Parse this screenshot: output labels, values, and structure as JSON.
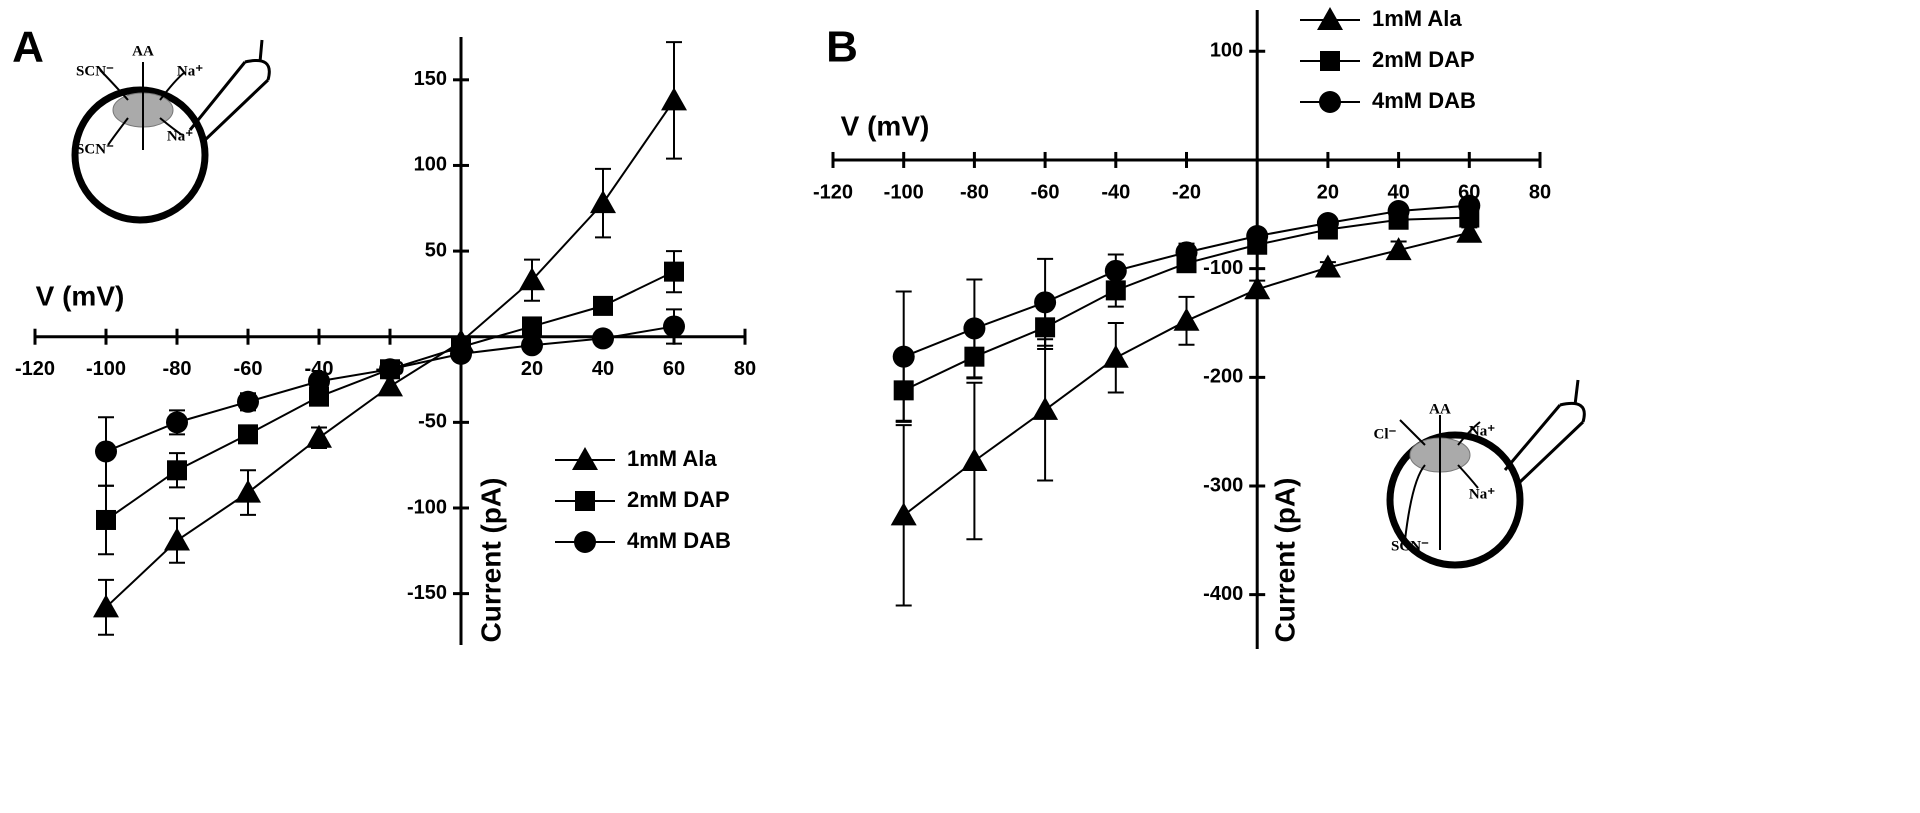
{
  "chart_data": [
    {
      "type": "line",
      "panel": "A",
      "x_label": "V (mV)",
      "y_label": "Current (pA)",
      "x": [
        -100,
        -80,
        -60,
        -40,
        -20,
        0,
        20,
        40,
        60
      ],
      "xlim": [
        -120,
        80
      ],
      "xticks": [
        -120,
        -100,
        -80,
        -60,
        -40,
        -20,
        20,
        40,
        60,
        80
      ],
      "ylim": [
        -180,
        175
      ],
      "yticks": [
        -150,
        -100,
        -50,
        50,
        100,
        150
      ],
      "legend": "lower right",
      "inset_labels": [
        "SCN⁻",
        "AA",
        "Na⁺",
        "Na⁺",
        "SCN⁻"
      ],
      "series": [
        {
          "name": "1mM Ala",
          "marker": "triangle",
          "color": "#000000",
          "values": [
            -158,
            -119,
            -91,
            -59,
            -29,
            -3,
            33,
            78,
            138
          ],
          "errors": [
            16,
            13,
            13,
            6,
            5,
            3,
            12,
            20,
            34
          ]
        },
        {
          "name": "2mM DAP",
          "marker": "square",
          "color": "#000000",
          "values": [
            -107,
            -78,
            -57,
            -35,
            -19,
            -6,
            6,
            18,
            38
          ],
          "errors": [
            20,
            10,
            5,
            5,
            3,
            2,
            3,
            4,
            12
          ]
        },
        {
          "name": "4mM DAB",
          "marker": "circle",
          "color": "#000000",
          "values": [
            -67,
            -50,
            -38,
            -26,
            -19,
            -10,
            -5,
            -1,
            6
          ],
          "errors": [
            20,
            7,
            5,
            4,
            3,
            2,
            2,
            2,
            10
          ]
        }
      ]
    },
    {
      "type": "line",
      "panel": "B",
      "x_label": "V (mV)",
      "y_label": "Current (pA)",
      "x": [
        -100,
        -80,
        -60,
        -40,
        -20,
        0,
        20,
        40,
        60
      ],
      "xlim": [
        -120,
        80
      ],
      "xticks": [
        -120,
        -100,
        -80,
        -60,
        -40,
        -20,
        20,
        40,
        60,
        80
      ],
      "ylim": [
        -450,
        138
      ],
      "yticks": [
        -400,
        -300,
        -200,
        -100,
        100
      ],
      "legend": "upper right",
      "inset_labels": [
        "Cl⁻",
        "AA",
        "Na⁺",
        "Na⁺",
        "SCN⁻"
      ],
      "series": [
        {
          "name": "1mM Ala",
          "marker": "triangle",
          "color": "#000000",
          "values": [
            -327,
            -277,
            -230,
            -182,
            -148,
            -119,
            -99,
            -83,
            -67
          ],
          "errors": [
            83,
            72,
            65,
            32,
            22,
            8,
            5,
            8,
            5
          ]
        },
        {
          "name": "2mM DAP",
          "marker": "square",
          "color": "#000000",
          "values": [
            -212,
            -181,
            -154,
            -120,
            -95,
            -78,
            -64,
            -55,
            -53
          ],
          "errors": [
            28,
            20,
            20,
            15,
            8,
            6,
            4,
            4,
            4
          ]
        },
        {
          "name": "4mM DAB",
          "marker": "circle",
          "color": "#000000",
          "values": [
            -181,
            -155,
            -131,
            -102,
            -85,
            -70,
            -58,
            -47,
            -42
          ],
          "errors": [
            60,
            45,
            40,
            15,
            8,
            6,
            4,
            4,
            4
          ]
        }
      ]
    }
  ]
}
